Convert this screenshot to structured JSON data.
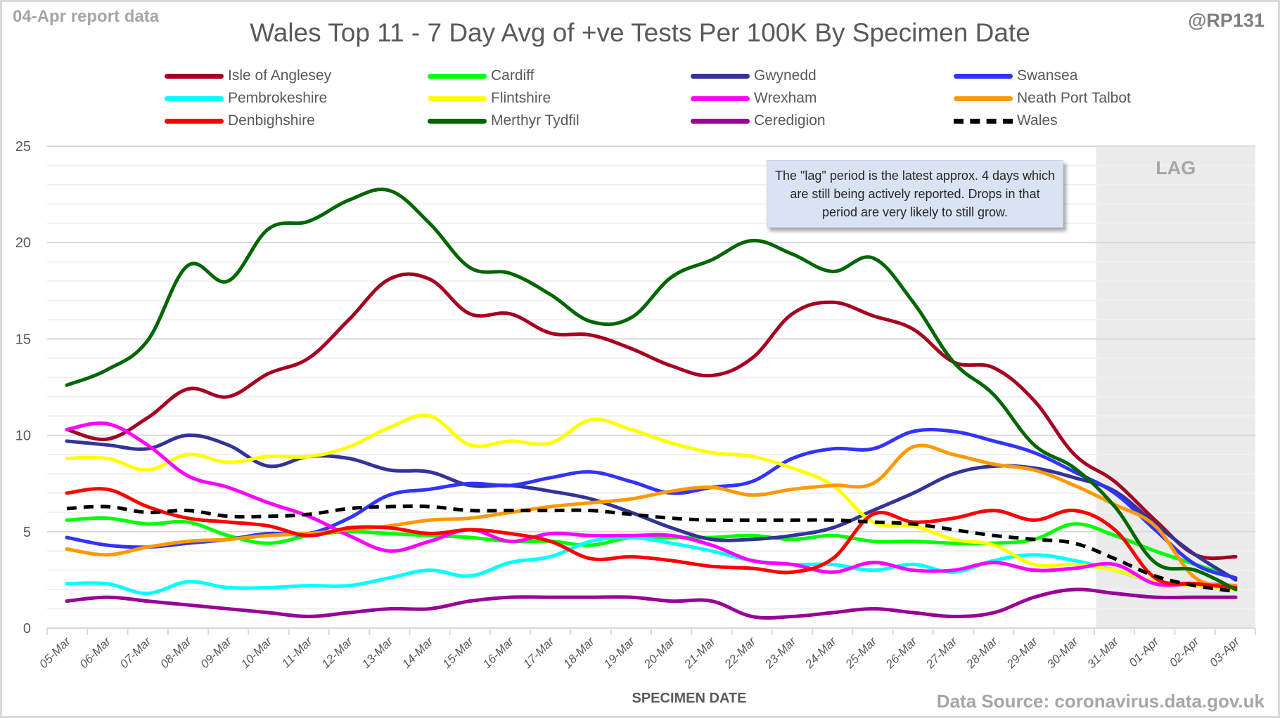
{
  "header": {
    "report_label": "04-Apr report data",
    "handle": "@RP131",
    "source": "Data Source: coronavirus.data.gov.uk"
  },
  "annotation": {
    "lag_label": "LAG",
    "note": "The \"lag\" period is the latest approx. 4 days which are still being actively reported.  Drops in that period are very likely to still grow."
  },
  "chart_data": {
    "type": "line",
    "title": "Wales Top 11 - 7 Day Avg of +ve Tests Per 100K By Specimen Date",
    "xlabel": "SPECIMEN DATE",
    "ylabel": "",
    "ylim": [
      0,
      25
    ],
    "yticks": [
      "0",
      "5",
      "10",
      "15",
      "20",
      "25"
    ],
    "grid": true,
    "legend_position": "top",
    "lag_start_category": "31-Mar",
    "categories": [
      "05-Mar",
      "06-Mar",
      "07-Mar",
      "08-Mar",
      "09-Mar",
      "10-Mar",
      "11-Mar",
      "12-Mar",
      "13-Mar",
      "14-Mar",
      "15-Mar",
      "16-Mar",
      "17-Mar",
      "18-Mar",
      "19-Mar",
      "20-Mar",
      "21-Mar",
      "22-Mar",
      "23-Mar",
      "24-Mar",
      "25-Mar",
      "26-Mar",
      "27-Mar",
      "28-Mar",
      "29-Mar",
      "30-Mar",
      "31-Mar",
      "01-Apr",
      "02-Apr",
      "03-Apr"
    ],
    "series": [
      {
        "name": "Isle of Anglesey",
        "color": "#a50021",
        "dashed": false,
        "values": [
          10.3,
          9.8,
          10.9,
          12.4,
          12.0,
          13.2,
          14.0,
          16.0,
          18.1,
          18.1,
          16.3,
          16.3,
          15.3,
          15.2,
          14.5,
          13.6,
          13.1,
          14.0,
          16.3,
          16.9,
          16.2,
          15.5,
          13.8,
          13.5,
          11.8,
          9.0,
          7.6,
          5.6,
          3.8,
          3.7
        ]
      },
      {
        "name": "Cardiff",
        "color": "#00ff00",
        "dashed": false,
        "values": [
          5.6,
          5.7,
          5.4,
          5.5,
          4.8,
          4.4,
          4.8,
          5.0,
          4.9,
          4.8,
          4.7,
          4.5,
          4.5,
          4.3,
          4.7,
          4.7,
          4.7,
          4.8,
          4.6,
          4.8,
          4.5,
          4.5,
          4.4,
          4.4,
          4.6,
          5.4,
          4.8,
          4.0,
          3.3,
          2.6
        ]
      },
      {
        "name": "Gwynedd",
        "color": "#333399",
        "dashed": false,
        "values": [
          9.7,
          9.5,
          9.3,
          10.0,
          9.5,
          8.4,
          8.9,
          8.8,
          8.2,
          8.1,
          7.4,
          7.4,
          7.1,
          6.7,
          6.0,
          5.2,
          4.6,
          4.6,
          4.8,
          5.2,
          6.1,
          7.0,
          8.0,
          8.4,
          8.3,
          7.8,
          7.1,
          5.4,
          3.8,
          2.5
        ]
      },
      {
        "name": "Swansea",
        "color": "#3333ff",
        "dashed": false,
        "values": [
          4.7,
          4.3,
          4.2,
          4.4,
          4.6,
          4.9,
          4.9,
          5.7,
          6.9,
          7.2,
          7.5,
          7.4,
          7.8,
          8.1,
          7.6,
          7.0,
          7.3,
          7.6,
          8.8,
          9.3,
          9.3,
          10.2,
          10.2,
          9.7,
          9.1,
          8.1,
          7.0,
          5.1,
          3.3,
          2.6
        ]
      },
      {
        "name": "Pembrokeshire",
        "color": "#00ffff",
        "dashed": false,
        "values": [
          2.3,
          2.3,
          1.8,
          2.4,
          2.1,
          2.1,
          2.2,
          2.2,
          2.6,
          3.0,
          2.7,
          3.4,
          3.7,
          4.5,
          4.7,
          4.4,
          4.0,
          3.5,
          3.3,
          3.3,
          3.0,
          3.3,
          2.9,
          3.5,
          3.8,
          3.5,
          3.0,
          2.4,
          2.2,
          2.0
        ]
      },
      {
        "name": "Flintshire",
        "color": "#ffff00",
        "dashed": false,
        "values": [
          8.8,
          8.8,
          8.2,
          9.0,
          8.6,
          8.9,
          8.9,
          9.4,
          10.4,
          11.0,
          9.5,
          9.7,
          9.6,
          10.8,
          10.3,
          9.6,
          9.1,
          8.9,
          8.3,
          7.4,
          5.5,
          5.3,
          4.6,
          4.3,
          3.3,
          3.3,
          3.0,
          2.4,
          2.2,
          2.0
        ]
      },
      {
        "name": "Wrexham",
        "color": "#ff00ff",
        "dashed": false,
        "values": [
          10.3,
          10.6,
          9.5,
          7.9,
          7.3,
          6.5,
          5.8,
          4.8,
          4.0,
          4.5,
          5.1,
          4.5,
          4.9,
          4.8,
          4.8,
          4.8,
          4.3,
          3.5,
          3.3,
          2.9,
          3.4,
          3.0,
          3.0,
          3.4,
          3.0,
          3.1,
          3.3,
          2.3,
          2.3,
          2.2
        ]
      },
      {
        "name": "Neath Port Talbot",
        "color": "#ff9900",
        "dashed": false,
        "values": [
          4.1,
          3.8,
          4.2,
          4.5,
          4.6,
          4.8,
          4.9,
          5.1,
          5.3,
          5.6,
          5.7,
          6.0,
          6.3,
          6.5,
          6.7,
          7.1,
          7.3,
          6.9,
          7.2,
          7.4,
          7.5,
          9.4,
          9.0,
          8.5,
          8.2,
          7.4,
          6.4,
          5.3,
          2.6,
          2.2
        ]
      },
      {
        "name": "Denbighshire",
        "color": "#ff0000",
        "dashed": false,
        "values": [
          7.0,
          7.2,
          6.3,
          5.7,
          5.5,
          5.3,
          4.8,
          5.2,
          5.2,
          4.9,
          5.1,
          4.9,
          4.5,
          3.6,
          3.7,
          3.5,
          3.2,
          3.1,
          2.9,
          3.6,
          5.9,
          5.5,
          5.7,
          6.1,
          5.6,
          6.1,
          5.1,
          2.6,
          2.3,
          2.1
        ]
      },
      {
        "name": "Merthyr Tydfil",
        "color": "#006600",
        "dashed": false,
        "values": [
          12.6,
          13.4,
          14.9,
          18.8,
          18.0,
          20.7,
          21.1,
          22.2,
          22.7,
          21.0,
          18.7,
          18.4,
          17.3,
          15.9,
          16.1,
          18.2,
          19.1,
          20.1,
          19.4,
          18.5,
          19.2,
          16.9,
          13.8,
          12.1,
          9.5,
          8.3,
          6.3,
          3.4,
          3.0,
          2.0
        ]
      },
      {
        "name": "Ceredigion",
        "color": "#990099",
        "dashed": false,
        "values": [
          1.4,
          1.6,
          1.4,
          1.2,
          1.0,
          0.8,
          0.6,
          0.8,
          1.0,
          1.0,
          1.4,
          1.6,
          1.6,
          1.6,
          1.6,
          1.4,
          1.4,
          0.6,
          0.6,
          0.8,
          1.0,
          0.8,
          0.6,
          0.8,
          1.6,
          2.0,
          1.8,
          1.6,
          1.6,
          1.6
        ]
      },
      {
        "name": "Wales",
        "color": "#000000",
        "dashed": true,
        "values": [
          6.2,
          6.3,
          6.0,
          6.1,
          5.8,
          5.8,
          5.9,
          6.2,
          6.3,
          6.3,
          6.1,
          6.1,
          6.1,
          6.1,
          5.9,
          5.7,
          5.6,
          5.6,
          5.6,
          5.6,
          5.5,
          5.4,
          5.1,
          4.8,
          4.6,
          4.4,
          3.6,
          2.7,
          2.2,
          1.9
        ]
      }
    ]
  }
}
